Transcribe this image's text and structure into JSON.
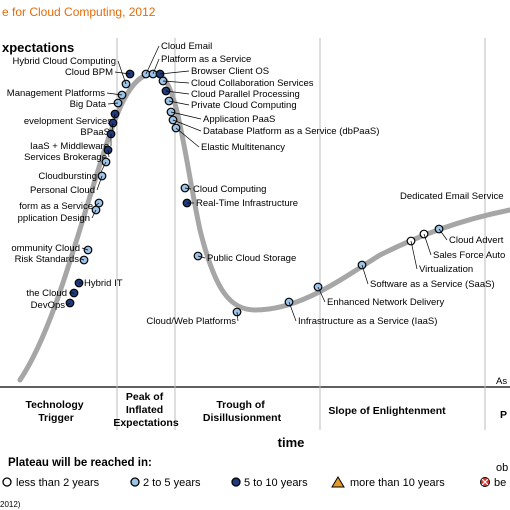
{
  "chart_data": {
    "type": "hype-cycle",
    "title": "e for Cloud Computing, 2012",
    "ylabel": "xpectations",
    "xlabel": "time",
    "phases": [
      "Technology Trigger",
      "Peak of Inflated Expectations",
      "Trough of Disillusionment",
      "Slope of Enlightenment",
      "P"
    ],
    "plateau_note": "As",
    "legend": {
      "title": "Plateau will be reached in:",
      "items": [
        {
          "key": "lt2",
          "label": "less than 2 years",
          "marker": "circle",
          "color": "#ffffff"
        },
        {
          "key": "2to5",
          "label": "2 to 5 years",
          "marker": "circle",
          "color": "#9dc3e6"
        },
        {
          "key": "5to10",
          "label": "5 to 10 years",
          "marker": "circle",
          "color": "#1f3a7a"
        },
        {
          "key": "gt10",
          "label": "more than 10 years",
          "marker": "triangle",
          "color": "#e39b2b"
        },
        {
          "key": "obs",
          "label": "be",
          "marker": "crossed",
          "color": "#e03c31"
        }
      ],
      "obs_top": "ob"
    },
    "footer": "2012)",
    "points": [
      {
        "label": "Hybrid Cloud Computing",
        "cat": "2to5"
      },
      {
        "label": "Cloud BPM",
        "cat": "5to10"
      },
      {
        "label": "Management Platforms",
        "cat": "2to5"
      },
      {
        "label": "Big Data",
        "cat": "2to5"
      },
      {
        "label": "evelopment Services",
        "cat": "5to10"
      },
      {
        "label": "BPaaS",
        "cat": "5to10"
      },
      {
        "label": "IaaS + Middleware",
        "cat": "5to10"
      },
      {
        "label": "Services Brokerage",
        "cat": "5to10"
      },
      {
        "label": "Cloudbursting",
        "cat": "2to5"
      },
      {
        "label": "Personal Cloud",
        "cat": "2to5"
      },
      {
        "label": "form as a Service",
        "cat": "2to5"
      },
      {
        "label": "pplication Design",
        "cat": "2to5"
      },
      {
        "label": "ommunity Cloud",
        "cat": "2to5"
      },
      {
        "label": "Risk Standards",
        "cat": "2to5"
      },
      {
        "label": "Hybrid IT",
        "cat": "5to10"
      },
      {
        "label": "the Cloud",
        "cat": "5to10"
      },
      {
        "label": "DevOps",
        "cat": "5to10"
      },
      {
        "label": "Cloud Email",
        "cat": "2to5"
      },
      {
        "label": "Platform as a Service",
        "cat": "2to5"
      },
      {
        "label": "Browser Client OS",
        "cat": "5to10"
      },
      {
        "label": "Cloud Collaboration Services",
        "cat": "2to5"
      },
      {
        "label": "Cloud Parallel Processing",
        "cat": "5to10"
      },
      {
        "label": "Private Cloud Computing",
        "cat": "2to5"
      },
      {
        "label": "Application PaaS",
        "cat": "2to5"
      },
      {
        "label": "Database Platform as a Service (dbPaaS)",
        "cat": "2to5"
      },
      {
        "label": "Elastic Multitenancy",
        "cat": "2to5"
      },
      {
        "label": "Cloud Computing",
        "cat": "2to5"
      },
      {
        "label": "Real-Time Infrastructure",
        "cat": "5to10"
      },
      {
        "label": "Public Cloud Storage",
        "cat": "2to5"
      },
      {
        "label": "Cloud/Web Platforms",
        "cat": "2to5"
      },
      {
        "label": "Infrastructure as a Service (IaaS)",
        "cat": "2to5"
      },
      {
        "label": "Enhanced Network Delivery",
        "cat": "2to5"
      },
      {
        "label": "Software as a Service (SaaS)",
        "cat": "2to5"
      },
      {
        "label": "Virtualization",
        "cat": "lt2"
      },
      {
        "label": "Sales Force Auto",
        "cat": "lt2"
      },
      {
        "label": "Cloud Advert",
        "cat": "2to5"
      },
      {
        "label": "Dedicated Email Service",
        "cat": "lt2"
      }
    ]
  }
}
